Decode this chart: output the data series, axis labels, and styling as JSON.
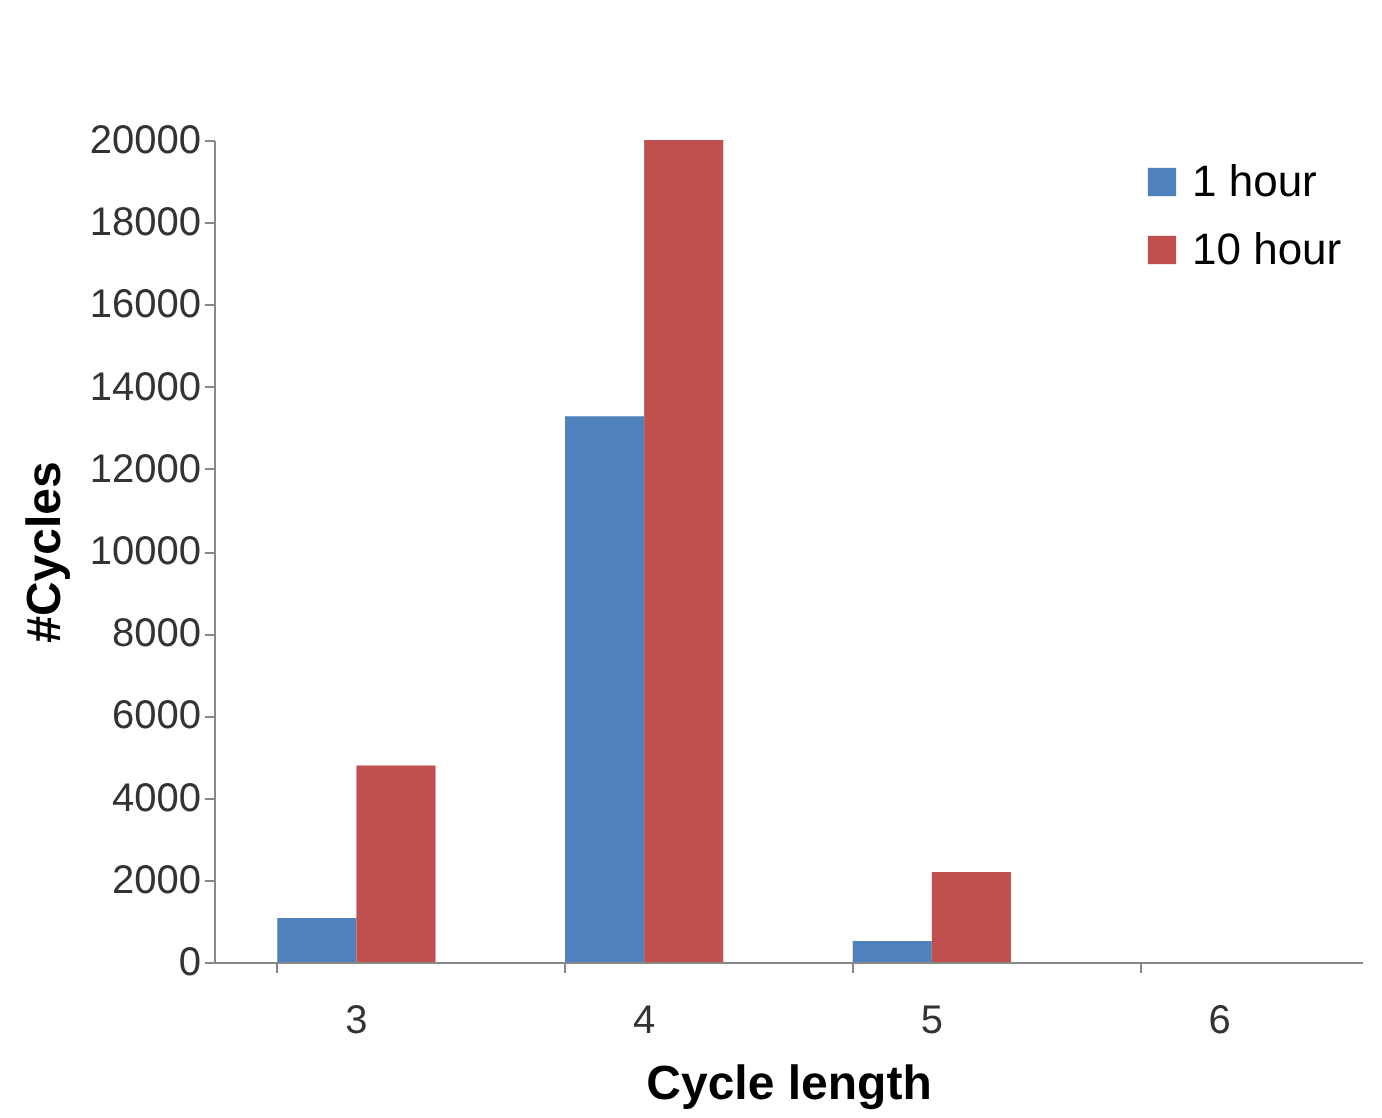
{
  "chart_data": {
    "type": "bar",
    "xlabel": "Cycle length",
    "ylabel": "#Cycles",
    "categories": [
      "3",
      "4",
      "5",
      "6"
    ],
    "series": [
      {
        "name": "1 hour",
        "color": "#4f81bd",
        "values": [
          1070,
          13280,
          510,
          0
        ]
      },
      {
        "name": "10 hour",
        "color": "#c0504d",
        "values": [
          4780,
          20000,
          2190,
          0
        ]
      }
    ],
    "ylim": [
      0,
      20000
    ],
    "yticks": [
      0,
      2000,
      4000,
      6000,
      8000,
      10000,
      12000,
      14000,
      16000,
      18000,
      20000
    ],
    "grid": false,
    "legend": "top right"
  }
}
